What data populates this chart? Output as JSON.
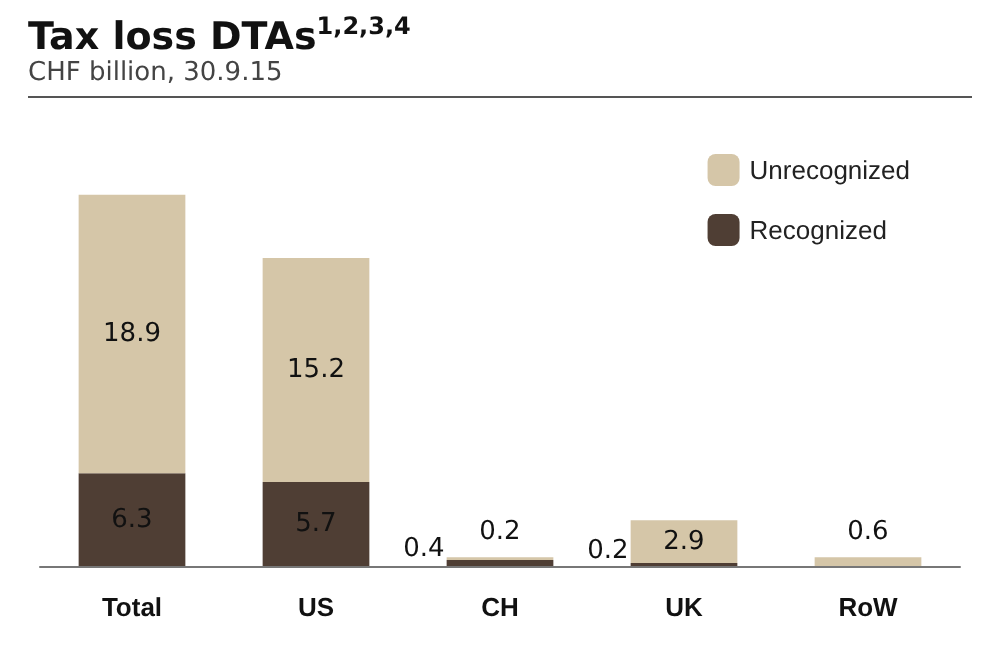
{
  "chart_data": {
    "type": "bar",
    "title": "Tax loss DTAs$^{1,2,3,4}$",
    "subtitle": "CHF billion, 30.9.15",
    "categories": [
      "Total",
      "US",
      "CH",
      "UK",
      "RoW"
    ],
    "stacked": true,
    "legend": "top right",
    "tick_labels": "x",
    "series": [
      {
        "name": "Recognized",
        "color": "#4f3e34",
        "values": [
          6.3,
          5.7,
          0.4,
          0.2,
          0
        ],
        "value_labels": [
          "6.3",
          "5.7",
          "0.4",
          "0.2",
          null
        ]
      },
      {
        "name": "Unrecognized",
        "color": "#d5c6a8",
        "values": [
          18.9,
          15.2,
          0.2,
          2.9,
          0.6
        ],
        "value_labels": [
          "18.9",
          "15.2",
          "0.2",
          "2.9",
          "0.6"
        ]
      }
    ]
  }
}
